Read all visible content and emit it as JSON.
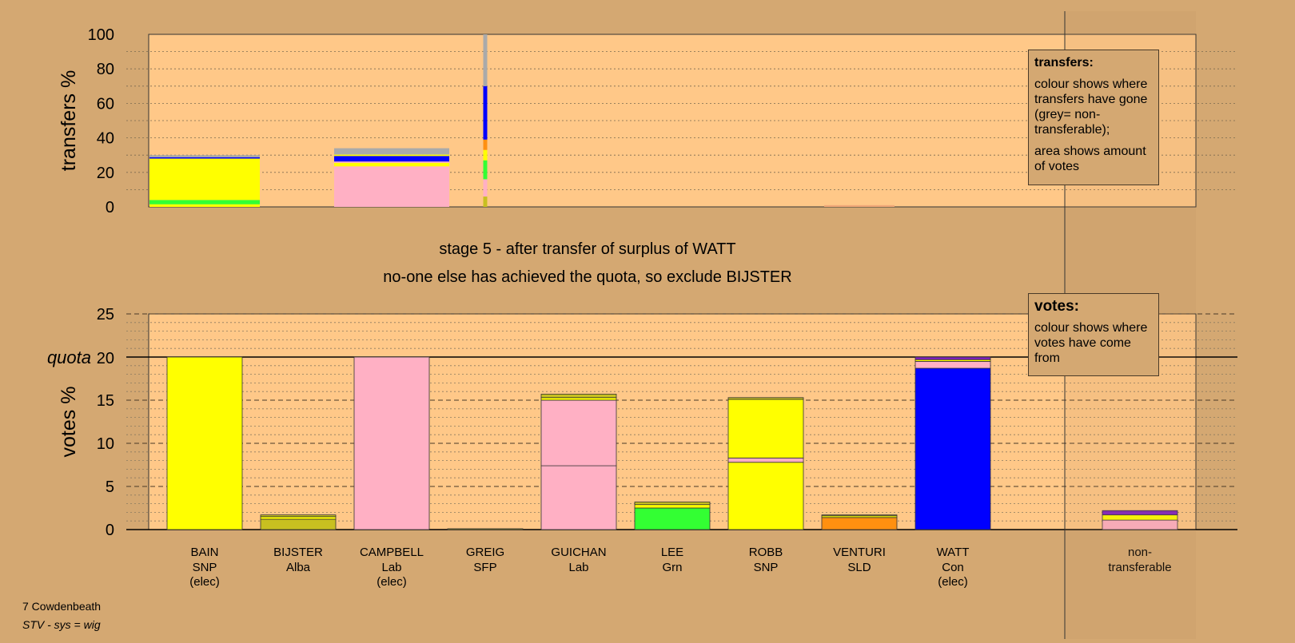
{
  "chart_data": [
    {
      "type": "bar",
      "stacked": true,
      "ylabel": "transfers %",
      "ylim": [
        0,
        100
      ],
      "yticks": [
        0,
        20,
        40,
        60,
        80,
        100
      ],
      "grid": true,
      "note": "transfers from the surplus of WATT",
      "bars": [
        {
          "candidate": "BAIN",
          "segments": [
            {
              "value": 1.5,
              "color": "#ffff00"
            },
            {
              "value": 2.5,
              "color": "#33ff33"
            },
            {
              "value": 24.0,
              "color": "#ffff00"
            },
            {
              "value": 0.8,
              "color": "#0000ff"
            },
            {
              "value": 1.2,
              "color": "#aaaaaa"
            }
          ]
        },
        {
          "candidate": "CAMPBELL",
          "segments": [
            {
              "value": 23.5,
              "color": "#ffb0c4"
            },
            {
              "value": 2.0,
              "color": "#ffff00"
            },
            {
              "value": 0.8,
              "color": "#ffb0c4"
            },
            {
              "value": 3.2,
              "color": "#0000ff"
            },
            {
              "value": 0.8,
              "color": "#ffff00"
            },
            {
              "value": 3.7,
              "color": "#aaaaaa"
            }
          ]
        },
        {
          "candidate": "GREIG",
          "segments": [
            {
              "value": 6.0,
              "color": "#c8c020"
            },
            {
              "value": 10.0,
              "color": "#ffb0c4"
            },
            {
              "value": 11.0,
              "color": "#33ff33"
            },
            {
              "value": 6.0,
              "color": "#ffff00"
            },
            {
              "value": 6.0,
              "color": "#ff9010"
            },
            {
              "value": 31.0,
              "color": "#0000ff"
            },
            {
              "value": 30.0,
              "color": "#aaaaaa"
            }
          ]
        },
        {
          "candidate": "VENTURI",
          "segments": [
            {
              "value": 1.0,
              "color": "#f0a878"
            }
          ]
        }
      ]
    },
    {
      "type": "bar",
      "stacked": true,
      "ylabel": "votes %",
      "ylim": [
        0,
        25
      ],
      "yticks": [
        0,
        5,
        10,
        15,
        20,
        25
      ],
      "quota": 20,
      "quota_label": "quota",
      "grid": true,
      "categories": [
        {
          "name": "BAIN",
          "party": "SNP",
          "status": "(elec)"
        },
        {
          "name": "BIJSTER",
          "party": "Alba",
          "status": ""
        },
        {
          "name": "CAMPBELL",
          "party": "Lab",
          "status": "(elec)"
        },
        {
          "name": "GREIG",
          "party": "SFP",
          "status": ""
        },
        {
          "name": "GUICHAN",
          "party": "Lab",
          "status": ""
        },
        {
          "name": "LEE",
          "party": "Grn",
          "status": ""
        },
        {
          "name": "ROBB",
          "party": "SNP",
          "status": ""
        },
        {
          "name": "VENTURI",
          "party": "SLD",
          "status": ""
        },
        {
          "name": "WATT",
          "party": "Con",
          "status": "(elec)"
        }
      ],
      "nontransferable_label": [
        "non-",
        "transferable"
      ],
      "bars": [
        {
          "candidate": "BAIN",
          "segments": [
            {
              "value": 20.0,
              "color": "#ffff00"
            }
          ]
        },
        {
          "candidate": "BIJSTER",
          "segments": [
            {
              "value": 1.2,
              "color": "#c8c020"
            },
            {
              "value": 0.3,
              "color": "#ffff00"
            },
            {
              "value": 0.2,
              "color": "#c8c020"
            }
          ]
        },
        {
          "candidate": "CAMPBELL",
          "segments": [
            {
              "value": 20.0,
              "color": "#ffb0c4"
            }
          ]
        },
        {
          "candidate": "GREIG",
          "segments": [
            {
              "value": 0.1,
              "color": "#c8c020"
            }
          ]
        },
        {
          "candidate": "GUICHAN",
          "segments": [
            {
              "value": 7.4,
              "color": "#ffb0c4"
            },
            {
              "value": 7.6,
              "color": "#ffb0c4"
            },
            {
              "value": 0.3,
              "color": "#ffff00"
            },
            {
              "value": 0.4,
              "color": "#c8c020"
            }
          ]
        },
        {
          "candidate": "LEE",
          "segments": [
            {
              "value": 2.5,
              "color": "#33ff33"
            },
            {
              "value": 0.4,
              "color": "#ffff00"
            },
            {
              "value": 0.3,
              "color": "#c8c020"
            }
          ]
        },
        {
          "candidate": "ROBB",
          "segments": [
            {
              "value": 7.8,
              "color": "#ffff00"
            },
            {
              "value": 0.5,
              "color": "#ffb0c4"
            },
            {
              "value": 6.8,
              "color": "#ffff00"
            },
            {
              "value": 0.2,
              "color": "#c8c020"
            }
          ]
        },
        {
          "candidate": "VENTURI",
          "segments": [
            {
              "value": 1.4,
              "color": "#ff9010"
            },
            {
              "value": 0.2,
              "color": "#ffff00"
            },
            {
              "value": 0.1,
              "color": "#c8c020"
            }
          ]
        },
        {
          "candidate": "WATT",
          "segments": [
            {
              "value": 18.7,
              "color": "#0000ff"
            },
            {
              "value": 0.8,
              "color": "#ffb0c4"
            },
            {
              "value": 0.2,
              "color": "#ffff00"
            },
            {
              "value": 0.3,
              "color": "#8020c0"
            }
          ]
        },
        {
          "candidate": "non-transferable",
          "segments": [
            {
              "value": 1.1,
              "color": "#ffb0c4"
            },
            {
              "value": 0.6,
              "color": "#ffff00"
            },
            {
              "value": 0.5,
              "color": "#8020c0"
            }
          ]
        }
      ]
    }
  ],
  "stage_text": {
    "line1": "stage 5 - after transfer of surplus of WATT",
    "line2": "no-one else has achieved the quota, so exclude BIJSTER"
  },
  "legend_transfers": {
    "title": "transfers:",
    "para1": "colour shows where transfers have gone (grey= non-transferable);",
    "para2": "area shows amount of votes"
  },
  "legend_votes": {
    "title": "votes:",
    "para1": "colour shows where votes have come from"
  },
  "footer": {
    "constituency": "7 Cowdenbeath",
    "system": "STV - sys = wig"
  }
}
